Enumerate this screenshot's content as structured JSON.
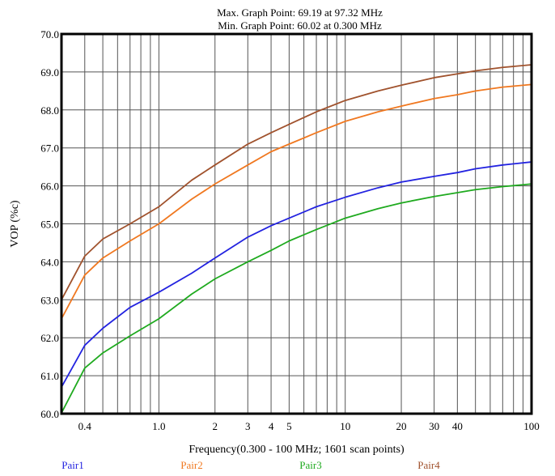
{
  "chart_data": {
    "type": "line",
    "title_lines": [
      "Max. Graph Point: 69.19 at 97.32 MHz",
      "Min. Graph Point: 60.02 at 0.300 MHz"
    ],
    "xlabel": "Frequency(0.300 - 100 MHz; 1601 scan points)",
    "ylabel": "VOP (%c)",
    "x_scale": "log",
    "xlim": [
      0.3,
      100
    ],
    "ylim": [
      60.0,
      70.0
    ],
    "grid": true,
    "legend_position": "bottom",
    "x_ticks": [
      0.4,
      1.0,
      2,
      3,
      4,
      5,
      10,
      20,
      30,
      40,
      100
    ],
    "x_tick_labels": [
      "0.4",
      "1.0",
      "2",
      "3",
      "4",
      "5",
      "10",
      "20",
      "30",
      "40",
      "100"
    ],
    "y_ticks": [
      60,
      61,
      62,
      63,
      64,
      65,
      66,
      67,
      68,
      69,
      70
    ],
    "y_tick_labels": [
      "60.0",
      "61.0",
      "62.0",
      "63.0",
      "64.0",
      "65.0",
      "66.0",
      "67.0",
      "68.0",
      "69.0",
      "70.0"
    ],
    "x": [
      0.3,
      0.4,
      0.5,
      0.7,
      1.0,
      1.5,
      2,
      3,
      4,
      5,
      7,
      10,
      15,
      20,
      30,
      40,
      50,
      70,
      100
    ],
    "series": [
      {
        "name": "Pair1",
        "color": "#2323e0",
        "values": [
          60.7,
          61.8,
          62.25,
          62.8,
          63.2,
          63.7,
          64.1,
          64.65,
          64.95,
          65.15,
          65.45,
          65.7,
          65.95,
          66.1,
          66.25,
          66.35,
          66.45,
          66.55,
          66.63
        ]
      },
      {
        "name": "Pair2",
        "color": "#f07820",
        "values": [
          62.5,
          63.65,
          64.1,
          64.55,
          65.0,
          65.65,
          66.05,
          66.55,
          66.9,
          67.1,
          67.4,
          67.7,
          67.95,
          68.1,
          68.3,
          68.4,
          68.5,
          68.6,
          68.67
        ]
      },
      {
        "name": "Pair3",
        "color": "#1faa1f",
        "values": [
          60.02,
          61.2,
          61.6,
          62.05,
          62.5,
          63.15,
          63.55,
          64.0,
          64.3,
          64.55,
          64.85,
          65.15,
          65.4,
          65.55,
          65.72,
          65.82,
          65.9,
          65.98,
          66.05
        ]
      },
      {
        "name": "Pair4",
        "color": "#a0522d",
        "values": [
          63.0,
          64.15,
          64.6,
          65.0,
          65.45,
          66.15,
          66.55,
          67.1,
          67.4,
          67.62,
          67.95,
          68.25,
          68.5,
          68.65,
          68.85,
          68.95,
          69.03,
          69.12,
          69.19
        ]
      }
    ]
  }
}
